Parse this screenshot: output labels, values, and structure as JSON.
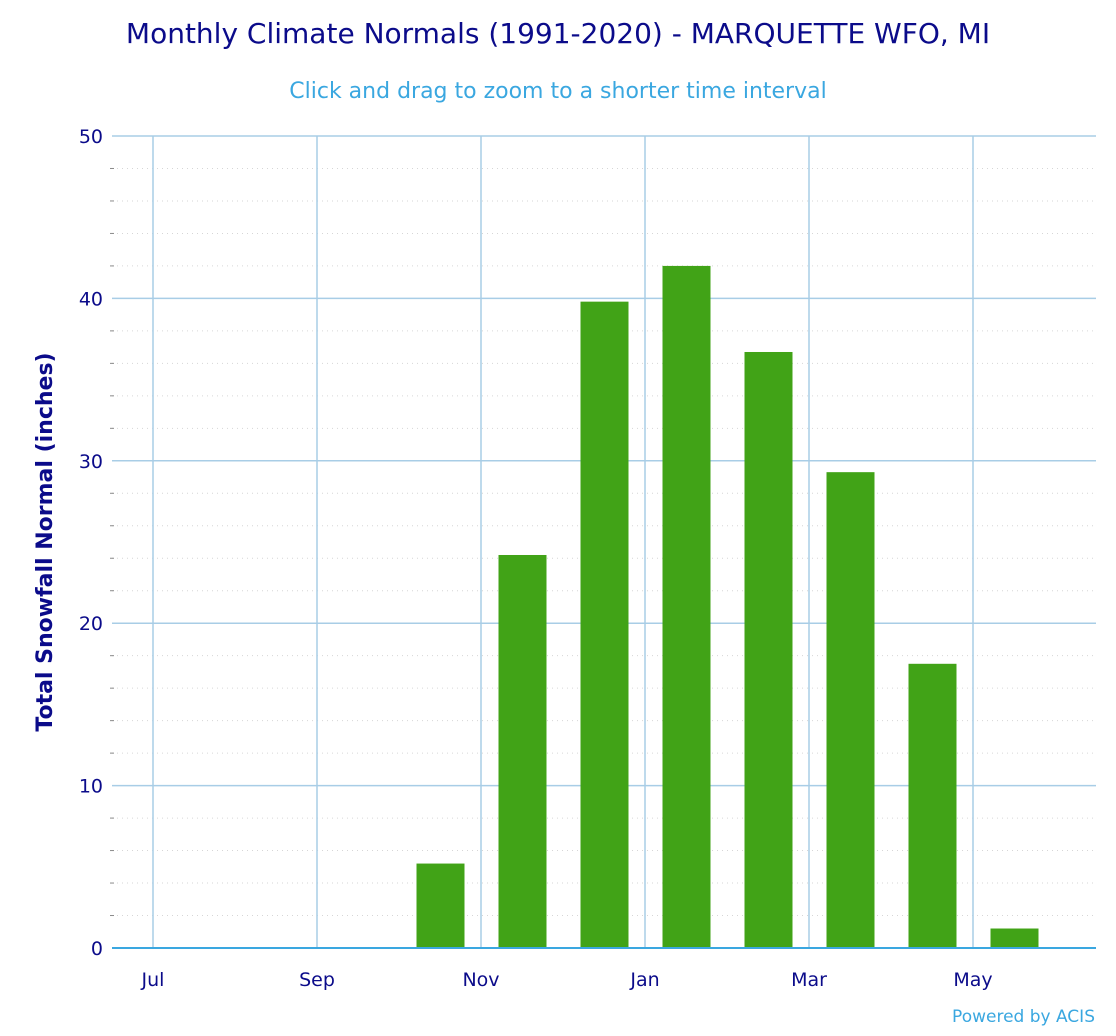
{
  "chart_data": {
    "type": "bar",
    "title": "Monthly Climate Normals (1991-2020) - MARQUETTE WFO, MI",
    "subtitle": "Click and drag to zoom to a shorter time interval",
    "ylabel": "Total Snowfall Normal (inches)",
    "xlabel": "",
    "ylim": [
      0,
      50
    ],
    "y_ticks": [
      "0",
      "10",
      "20",
      "30",
      "40",
      "50"
    ],
    "x_tick_labels": [
      "Jul",
      "Sep",
      "Nov",
      "Jan",
      "Mar",
      "May"
    ],
    "months": [
      "Jul",
      "Aug",
      "Sep",
      "Oct",
      "Nov",
      "Dec",
      "Jan",
      "Feb",
      "Mar",
      "Apr",
      "May",
      "Jun"
    ],
    "values": [
      0,
      0,
      0,
      5.2,
      24.2,
      39.8,
      42.0,
      36.7,
      29.3,
      17.5,
      1.2,
      0
    ],
    "bar_color": "#41a317",
    "grid": true,
    "legend": "none",
    "credit": "Powered by ACIS"
  }
}
